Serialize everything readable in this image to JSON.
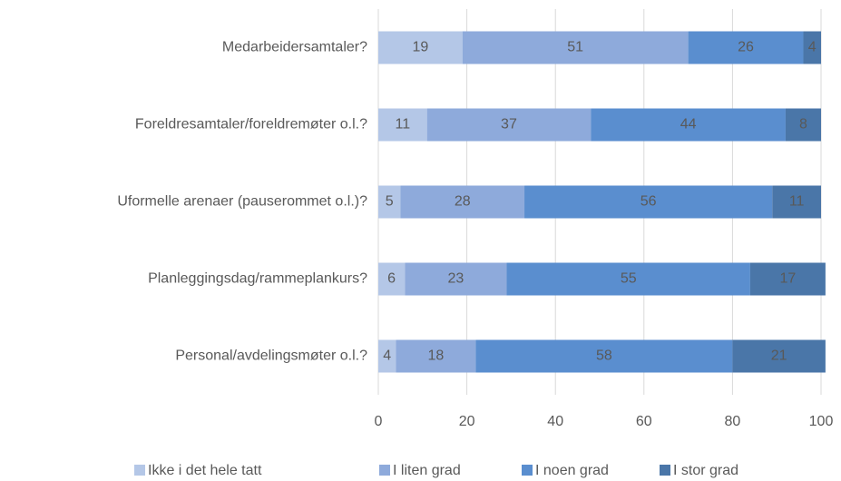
{
  "chart_data": {
    "type": "stacked_barh",
    "categories": [
      "Medarbeidersamtaler?",
      "Foreldresamtaler/foreldremøter o.l.?",
      "Uformelle arenaer (pauserommet o.l.)?",
      "Planleggingsdag/rammeplankurs?",
      "Personal/avdelingsmøter o.l.?"
    ],
    "series": [
      {
        "name": "Ikke i det hele tatt",
        "color": "#b4c7e7",
        "values": [
          19,
          11,
          5,
          6,
          4
        ]
      },
      {
        "name": "I liten grad",
        "color": "#8eaadb",
        "values": [
          51,
          37,
          28,
          23,
          18
        ]
      },
      {
        "name": "I noen grad",
        "color": "#5a8ecf",
        "values": [
          26,
          44,
          56,
          55,
          58
        ]
      },
      {
        "name": "I stor grad",
        "color": "#4a76a8",
        "values": [
          4,
          8,
          11,
          17,
          21
        ]
      }
    ],
    "xlim": [
      0,
      100
    ],
    "xticks": [
      0,
      20,
      40,
      60,
      80,
      100
    ],
    "grid": true,
    "legend": "bottom"
  }
}
